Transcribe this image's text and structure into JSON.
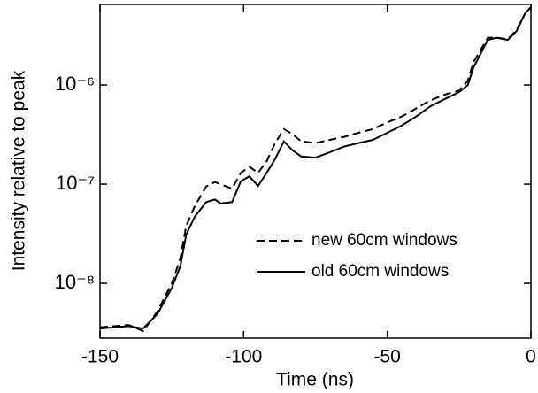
{
  "chart_data": {
    "type": "line",
    "xlabel": "Time (ns)",
    "ylabel": "Intensity relative to peak",
    "x": [
      -150,
      -140,
      -135,
      -130,
      -125,
      -122,
      -120,
      -117,
      -113,
      -110,
      -108,
      -104,
      -101,
      -98,
      -95,
      -92,
      -89,
      -86,
      -83,
      -80,
      -75,
      -70,
      -65,
      -60,
      -55,
      -50,
      -45,
      -40,
      -35,
      -30,
      -25,
      -22,
      -20,
      -15,
      -12,
      -8,
      -5,
      -2,
      0
    ],
    "series": [
      {
        "name": "new 60cm windows",
        "color": "#000000",
        "linestyle": "dashed",
        "values": [
          3.6e-09,
          3.8e-09,
          3.3e-09,
          5.2e-09,
          1e-08,
          1.8e-08,
          3.8e-08,
          6e-08,
          9.5e-08,
          1.05e-07,
          1e-07,
          9e-08,
          1.3e-07,
          1.5e-07,
          1.3e-07,
          1.7e-07,
          2.6e-07,
          3.6e-07,
          3.2e-07,
          2.7e-07,
          2.6e-07,
          2.8e-07,
          3e-07,
          3.3e-07,
          3.6e-07,
          4.2e-07,
          4.8e-07,
          5.8e-07,
          7e-07,
          8e-07,
          8.8e-07,
          1.1e-06,
          1.7e-06,
          3e-06,
          3e-06,
          2.9e-06,
          3.6e-06,
          5.3e-06,
          6.1e-06
        ]
      },
      {
        "name": "old 60cm windows",
        "color": "#000000",
        "linestyle": "solid",
        "values": [
          3.5e-09,
          3.7e-09,
          3.5e-09,
          4.9e-09,
          9e-09,
          1.5e-08,
          3.1e-08,
          4.7e-08,
          6.6e-08,
          7e-08,
          6.4e-08,
          6.6e-08,
          1.07e-07,
          1.2e-07,
          9.6e-08,
          1.3e-07,
          1.8e-07,
          2.7e-07,
          2.2e-07,
          1.9e-07,
          1.85e-07,
          2.1e-07,
          2.4e-07,
          2.6e-07,
          2.8e-07,
          3.3e-07,
          3.9e-07,
          4.8e-07,
          6.1e-07,
          7.2e-07,
          8.5e-07,
          1e-06,
          1.5e-06,
          2.85e-06,
          3e-06,
          2.85e-06,
          3.5e-06,
          5.3e-06,
          6.1e-06
        ]
      }
    ],
    "xlim": [
      -150,
      0
    ],
    "xticks": [
      -150,
      -100,
      -50,
      0
    ],
    "ylim": [
      2.8e-09,
      6.5e-06
    ],
    "ylog": true,
    "yticks": [
      {
        "value": 1e-08,
        "label": "10⁻⁸"
      },
      {
        "value": 1e-07,
        "label": "10⁻⁷"
      },
      {
        "value": 1e-06,
        "label": "10⁻⁶"
      }
    ],
    "legend": "lower right"
  }
}
